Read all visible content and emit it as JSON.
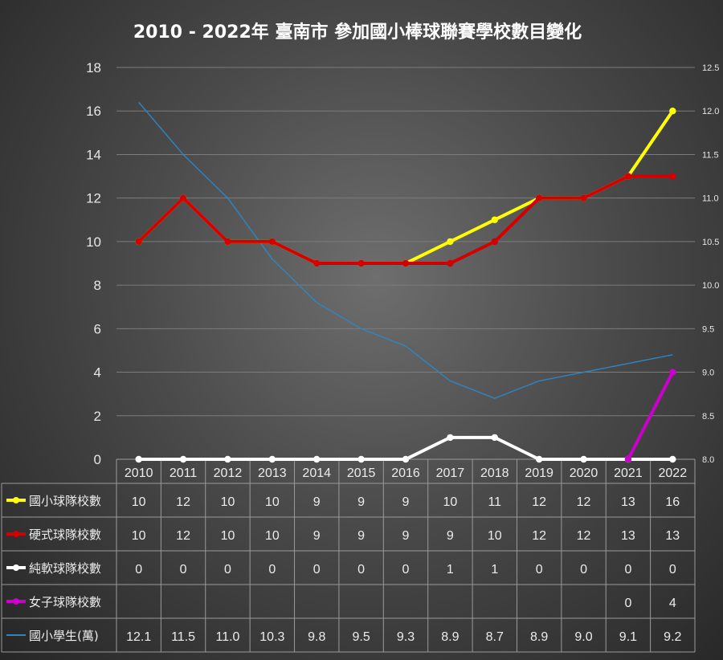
{
  "chart_data": {
    "type": "line",
    "title": "2010 - 2022年 臺南市 參加國小棒球聯賽學校數目變化",
    "categories": [
      "2010",
      "2011",
      "2012",
      "2013",
      "2014",
      "2015",
      "2016",
      "2017",
      "2018",
      "2019",
      "2020",
      "2021",
      "2022"
    ],
    "y_ticks": [
      "0",
      "2",
      "4",
      "6",
      "8",
      "10",
      "12",
      "14",
      "16",
      "18"
    ],
    "y2_ticks": [
      "8.0",
      "8.5",
      "9.0",
      "9.5",
      "10.0",
      "10.5",
      "11.0",
      "11.5",
      "12.0",
      "12.5"
    ],
    "ylim": [
      0,
      18
    ],
    "y2lim": [
      8.0,
      12.5
    ],
    "grid": true,
    "legend_placement": "data-table",
    "series": [
      {
        "name": "國小球隊校數",
        "color": "#ffff00",
        "axis": "left",
        "markers": true,
        "values": [
          10,
          12,
          10,
          10,
          9,
          9,
          9,
          10,
          11,
          12,
          12,
          13,
          16
        ],
        "labels": [
          "10",
          "12",
          "10",
          "10",
          "9",
          "9",
          "9",
          "10",
          "11",
          "12",
          "12",
          "13",
          "16"
        ]
      },
      {
        "name": "硬式球隊校數",
        "color": "#d40000",
        "axis": "left",
        "markers": true,
        "values": [
          10,
          12,
          10,
          10,
          9,
          9,
          9,
          9,
          10,
          12,
          12,
          13,
          13
        ],
        "labels": [
          "10",
          "12",
          "10",
          "10",
          "9",
          "9",
          "9",
          "9",
          "10",
          "12",
          "12",
          "13",
          "13"
        ]
      },
      {
        "name": "純軟球隊校數",
        "color": "#ffffff",
        "axis": "left",
        "markers": true,
        "values": [
          0,
          0,
          0,
          0,
          0,
          0,
          0,
          1,
          1,
          0,
          0,
          0,
          0
        ],
        "labels": [
          "0",
          "0",
          "0",
          "0",
          "0",
          "0",
          "0",
          "1",
          "1",
          "0",
          "0",
          "0",
          "0"
        ]
      },
      {
        "name": "女子球隊校數",
        "color": "#cc00cc",
        "axis": "left",
        "markers": true,
        "values": [
          null,
          null,
          null,
          null,
          null,
          null,
          null,
          null,
          null,
          null,
          null,
          0,
          4
        ],
        "labels": [
          "",
          "",
          "",
          "",
          "",
          "",
          "",
          "",
          "",
          "",
          "",
          "0",
          "4"
        ]
      },
      {
        "name": "國小學生(萬)",
        "color": "#2e86c1",
        "axis": "right",
        "markers": false,
        "values": [
          12.1,
          11.5,
          11.0,
          10.3,
          9.8,
          9.5,
          9.3,
          8.9,
          8.7,
          8.9,
          9.0,
          9.1,
          9.2
        ],
        "labels": [
          "12.1",
          "11.5",
          "11.0",
          "10.3",
          "9.8",
          "9.5",
          "9.3",
          "8.9",
          "8.7",
          "8.9",
          "9.0",
          "9.1",
          "9.2"
        ]
      }
    ]
  }
}
